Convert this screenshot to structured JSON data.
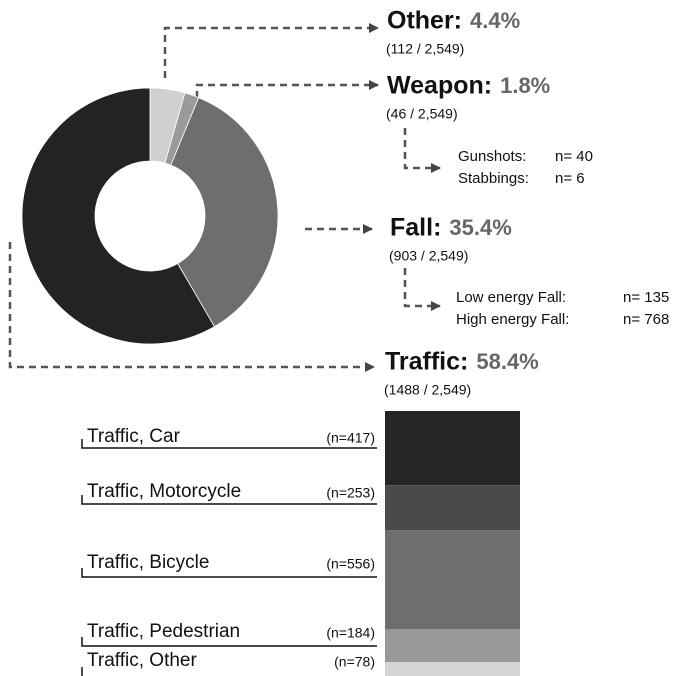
{
  "chart_data": [
    {
      "type": "pie",
      "donut": true,
      "categories": [
        "Other:",
        "Weapon:",
        "Fall:",
        "Traffic:"
      ],
      "values": [
        4.4,
        1.8,
        35.4,
        58.4
      ],
      "value_labels": [
        "4.4%",
        "1.8%",
        "35.4%",
        "58.4%"
      ],
      "counts": [
        "(112 / 2,549)",
        "(46 / 2,549)",
        "(903 / 2,549)",
        "(1488 / 2,549)"
      ],
      "colors": [
        "#d0d0d0",
        "#9a9a9a",
        "#6e6e6e",
        "#232323"
      ],
      "weapon_breakdown": [
        {
          "name": "Gunshots:",
          "text": "n= 40"
        },
        {
          "name": "Stabbings:",
          "text": "n= 6"
        }
      ],
      "fall_breakdown": [
        {
          "name": "Low energy Fall:",
          "text": "n= 135"
        },
        {
          "name": "High energy Fall:",
          "text": "n= 768"
        }
      ]
    },
    {
      "type": "bar",
      "stacked": true,
      "categories": [
        "Traffic, Car",
        "Traffic, Motorcycle",
        "Traffic, Bicycle",
        "Traffic, Pedestrian",
        "Traffic, Other"
      ],
      "values": [
        417,
        253,
        556,
        184,
        78
      ],
      "value_labels": [
        "(n=417)",
        "(n=253)",
        "(n=556)",
        "(n=184)",
        "(n=78)"
      ],
      "colors": [
        "#262626",
        "#4a4a4a",
        "#6e6e6e",
        "#999999",
        "#d4d4d4"
      ]
    }
  ]
}
